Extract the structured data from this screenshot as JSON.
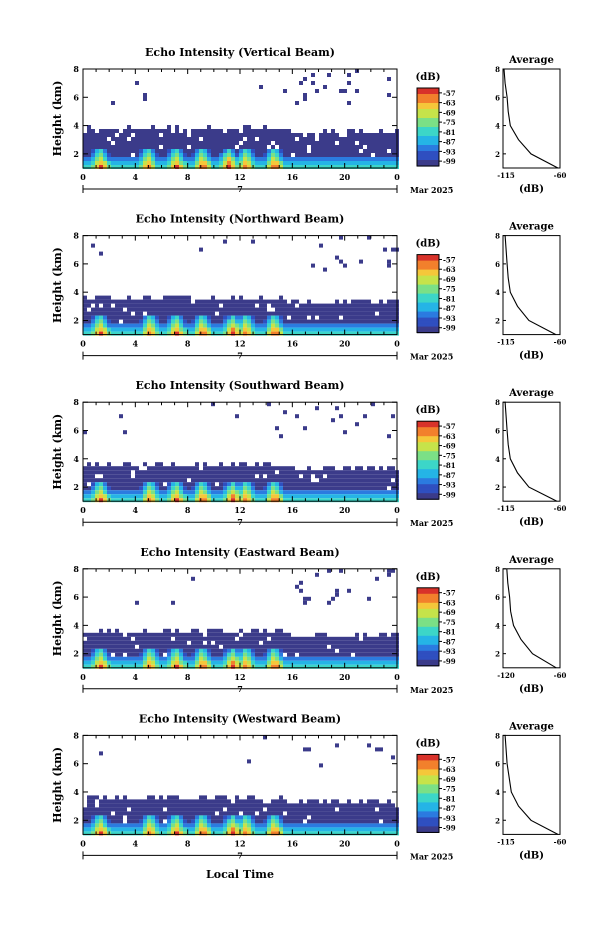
{
  "colors": {
    "colormap": [
      "#3b3b8a",
      "#2f4fc0",
      "#2b7be0",
      "#25b4e6",
      "#3cd6c8",
      "#7be086",
      "#c6e34a",
      "#f5c73a",
      "#f2802c",
      "#d8322a"
    ],
    "line": "#000000",
    "background": "#ffffff"
  },
  "figure": {
    "xlabel": "Local Time",
    "ylabel": "Height (km)",
    "month_label": "Mar 2025",
    "period_label": "7",
    "colorbar_title": "(dB)",
    "colorbar_ticks": [
      "-57",
      "-63",
      "-69",
      "-75",
      "-81",
      "-87",
      "-93",
      "-99"
    ],
    "avg_title": "Average",
    "avg_xlabel": "(dB)"
  },
  "chart_data": [
    {
      "type": "heatmap",
      "title": "Echo Intensity (Vertical Beam)",
      "ylabel": "Height (km)",
      "xlim": [
        0,
        24
      ],
      "ylim": [
        1,
        8
      ],
      "x_ticks": [
        "0",
        "4",
        "8",
        "12",
        "16",
        "20",
        "0"
      ],
      "y_ticks": [
        "2",
        "4",
        "6",
        "8"
      ],
      "clim": [
        -99,
        -57
      ],
      "colorbar_ticks": [
        "-57",
        "-63",
        "-69",
        "-75",
        "-81",
        "-87",
        "-93",
        "-99"
      ],
      "top_extent_km": 3.8,
      "peak_hours": [
        1.2,
        4.8,
        7.0,
        9.0,
        11.0,
        12.3,
        14.5
      ],
      "average_profile": {
        "title": "Average",
        "xlabel": "(dB)",
        "x_ticks": [
          "-115",
          "-60"
        ],
        "xlim": [
          -115,
          -60
        ],
        "height_km": [
          1,
          2,
          3,
          4,
          5,
          6,
          7,
          8
        ],
        "value_db": [
          -62,
          -88,
          -100,
          -108,
          -110,
          -111,
          -113,
          -114
        ]
      }
    },
    {
      "type": "heatmap",
      "title": "Echo Intensity (Northward Beam)",
      "ylabel": "Height (km)",
      "xlim": [
        0,
        24
      ],
      "ylim": [
        1,
        8
      ],
      "x_ticks": [
        "0",
        "4",
        "8",
        "12",
        "16",
        "20",
        "0"
      ],
      "y_ticks": [
        "2",
        "4",
        "6",
        "8"
      ],
      "clim": [
        -99,
        -57
      ],
      "colorbar_ticks": [
        "-57",
        "-63",
        "-69",
        "-75",
        "-81",
        "-87",
        "-93",
        "-99"
      ],
      "top_extent_km": 3.6,
      "peak_hours": [
        1.2,
        5.0,
        7.0,
        9.0,
        11.3,
        12.3,
        14.5
      ],
      "average_profile": {
        "title": "Average",
        "xlabel": "(dB)",
        "x_ticks": [
          "-115",
          "-60"
        ],
        "xlim": [
          -115,
          -60
        ],
        "height_km": [
          1,
          2,
          3,
          4,
          5,
          6,
          7,
          8
        ],
        "value_db": [
          -64,
          -90,
          -101,
          -108,
          -110,
          -111,
          -112,
          -113
        ]
      }
    },
    {
      "type": "heatmap",
      "title": "Echo Intensity (Southward Beam)",
      "ylabel": "Height (km)",
      "xlim": [
        0,
        24
      ],
      "ylim": [
        1,
        8
      ],
      "x_ticks": [
        "0",
        "4",
        "8",
        "12",
        "16",
        "20",
        "0"
      ],
      "y_ticks": [
        "2",
        "4",
        "6",
        "8"
      ],
      "clim": [
        -99,
        -57
      ],
      "colorbar_ticks": [
        "-57",
        "-63",
        "-69",
        "-75",
        "-81",
        "-87",
        "-93",
        "-99"
      ],
      "top_extent_km": 3.6,
      "peak_hours": [
        1.2,
        5.0,
        7.0,
        9.0,
        11.3,
        12.3,
        14.5
      ],
      "average_profile": {
        "title": "Average",
        "xlabel": "(dB)",
        "x_ticks": [
          "-115",
          "-60"
        ],
        "xlim": [
          -115,
          -60
        ],
        "height_km": [
          1,
          2,
          3,
          4,
          5,
          6,
          7,
          8
        ],
        "value_db": [
          -63,
          -90,
          -101,
          -108,
          -110,
          -111,
          -112,
          -113
        ]
      }
    },
    {
      "type": "heatmap",
      "title": "Echo Intensity (Eastward Beam)",
      "ylabel": "Height (km)",
      "xlim": [
        0,
        24
      ],
      "ylim": [
        1,
        8
      ],
      "x_ticks": [
        "0",
        "4",
        "8",
        "12",
        "16",
        "20",
        "0"
      ],
      "y_ticks": [
        "2",
        "4",
        "6",
        "8"
      ],
      "clim": [
        -99,
        -57
      ],
      "colorbar_ticks": [
        "-57",
        "-63",
        "-69",
        "-75",
        "-81",
        "-87",
        "-93",
        "-99"
      ],
      "top_extent_km": 3.6,
      "peak_hours": [
        1.2,
        5.0,
        7.0,
        9.0,
        11.3,
        12.3,
        14.5
      ],
      "average_profile": {
        "title": "Average",
        "xlabel": "(dB)",
        "x_ticks": [
          "-120",
          "-60"
        ],
        "xlim": [
          -120,
          -60
        ],
        "height_km": [
          1,
          2,
          3,
          4,
          5,
          6,
          7,
          8
        ],
        "value_db": [
          -64,
          -89,
          -101,
          -109,
          -112,
          -113,
          -115,
          -116
        ]
      }
    },
    {
      "type": "heatmap",
      "title": "Echo Intensity (Westward Beam)",
      "ylabel": "Height (km)",
      "xlim": [
        0,
        24
      ],
      "ylim": [
        1,
        8
      ],
      "x_ticks": [
        "0",
        "4",
        "8",
        "12",
        "16",
        "20",
        "0"
      ],
      "y_ticks": [
        "2",
        "4",
        "6",
        "8"
      ],
      "clim": [
        -99,
        -57
      ],
      "colorbar_ticks": [
        "-57",
        "-63",
        "-69",
        "-75",
        "-81",
        "-87",
        "-93",
        "-99"
      ],
      "top_extent_km": 3.6,
      "peak_hours": [
        1.2,
        5.0,
        7.0,
        9.0,
        11.3,
        12.3,
        14.5
      ],
      "average_profile": {
        "title": "Average",
        "xlabel": "(dB)",
        "x_ticks": [
          "-115",
          "-60"
        ],
        "xlim": [
          -115,
          -60
        ],
        "height_km": [
          1,
          2,
          3,
          4,
          5,
          6,
          7,
          8
        ],
        "value_db": [
          -62,
          -88,
          -100,
          -107,
          -109,
          -111,
          -112,
          -113
        ]
      }
    }
  ]
}
